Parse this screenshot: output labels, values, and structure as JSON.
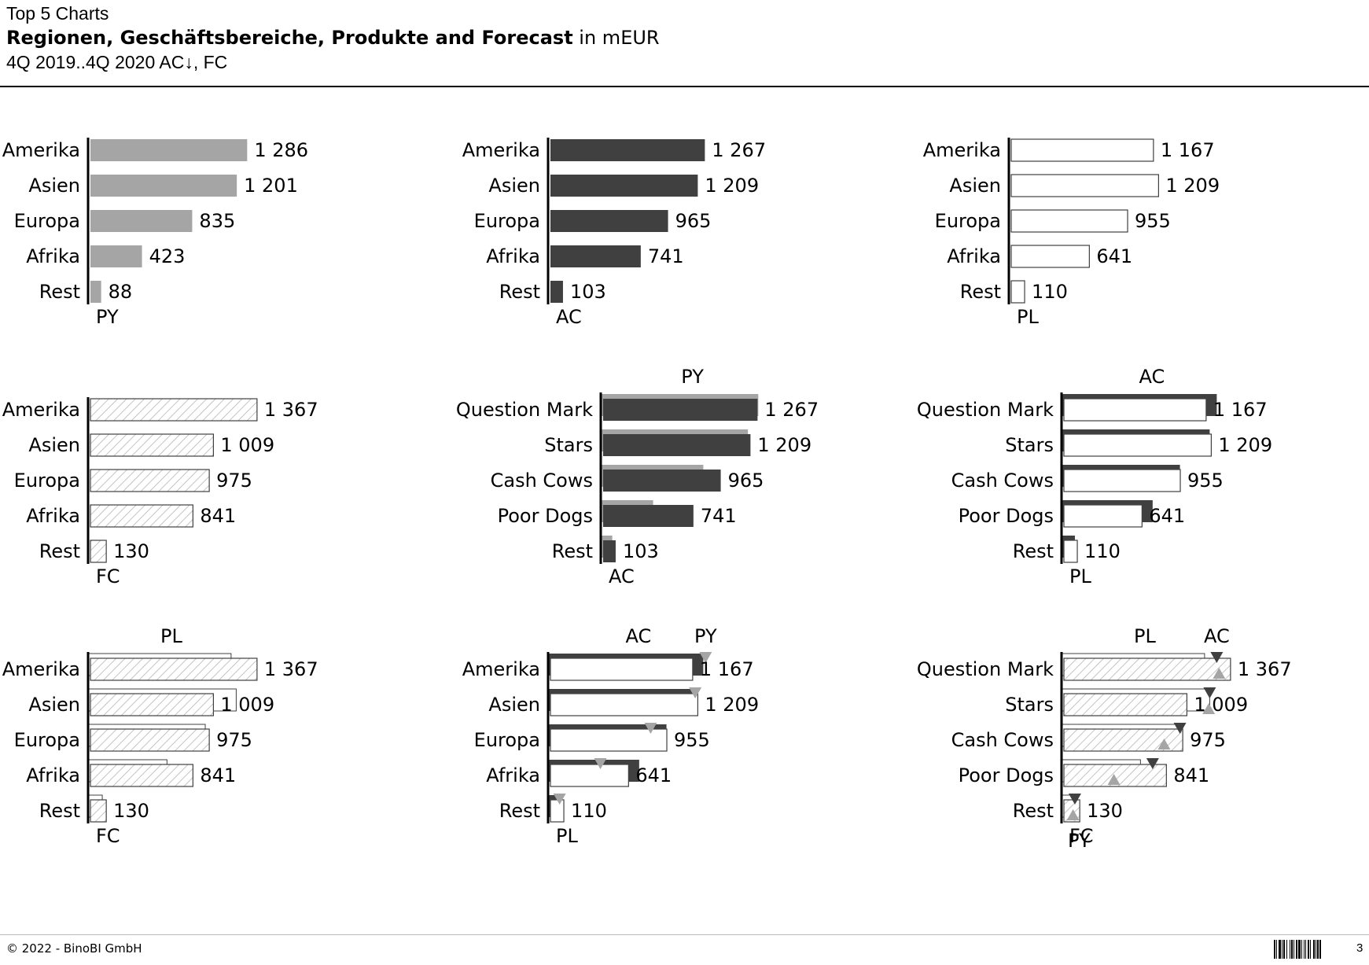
{
  "header": {
    "top": "Top 5 Charts",
    "title_bold": "Regionen, Geschäftsbereiche, Produkte and Forecast",
    "title_unit": " in mEUR",
    "subtitle": "4Q 2019..4Q 2020 AC↓, FC"
  },
  "footer": {
    "copyright": "© 2022 - BinoBI GmbH",
    "page": "3"
  },
  "colors": {
    "PY": "#a5a5a5",
    "AC": "#404040",
    "PL": "#ffffff",
    "FC": "hatch",
    "axis": "#000000"
  },
  "chart_data": [
    {
      "type": "bar",
      "id": "c1",
      "categories": [
        "Amerika",
        "Asien",
        "Europa",
        "Afrika",
        "Rest"
      ],
      "main": {
        "name": "PY",
        "values": [
          1286,
          1201,
          835,
          423,
          88
        ]
      },
      "labels": [
        "1 286",
        "1 201",
        "835",
        "423",
        "88"
      ],
      "axis_label": "PY"
    },
    {
      "type": "bar",
      "id": "c2",
      "categories": [
        "Amerika",
        "Asien",
        "Europa",
        "Afrika",
        "Rest"
      ],
      "main": {
        "name": "AC",
        "values": [
          1267,
          1209,
          965,
          741,
          103
        ]
      },
      "labels": [
        "1 267",
        "1 209",
        "965",
        "741",
        "103"
      ],
      "axis_label": "AC"
    },
    {
      "type": "bar",
      "id": "c3",
      "categories": [
        "Amerika",
        "Asien",
        "Europa",
        "Afrika",
        "Rest"
      ],
      "main": {
        "name": "PL",
        "values": [
          1167,
          1209,
          955,
          641,
          110
        ]
      },
      "labels": [
        "1 167",
        "1 209",
        "955",
        "641",
        "110"
      ],
      "axis_label": "PL"
    },
    {
      "type": "bar",
      "id": "c4",
      "categories": [
        "Amerika",
        "Asien",
        "Europa",
        "Afrika",
        "Rest"
      ],
      "main": {
        "name": "FC",
        "values": [
          1367,
          1009,
          975,
          841,
          130
        ]
      },
      "labels": [
        "1 367",
        "1 009",
        "975",
        "841",
        "130"
      ],
      "axis_label": "FC"
    },
    {
      "type": "bar",
      "id": "c5",
      "categories": [
        "Question Mark",
        "Stars",
        "Cash Cows",
        "Poor Dogs",
        "Rest"
      ],
      "main": {
        "name": "AC",
        "values": [
          1267,
          1209,
          965,
          741,
          103
        ]
      },
      "reference": {
        "name": "PY",
        "values": [
          1286,
          1201,
          835,
          423,
          88
        ]
      },
      "labels": [
        "1 267",
        "1 209",
        "965",
        "741",
        "103"
      ],
      "axis_label": "AC",
      "top_labels": [
        "PY"
      ]
    },
    {
      "type": "bar",
      "id": "c6",
      "categories": [
        "Question Mark",
        "Stars",
        "Cash Cows",
        "Poor Dogs",
        "Rest"
      ],
      "main": {
        "name": "PL",
        "values": [
          1167,
          1209,
          955,
          641,
          110
        ]
      },
      "reference": {
        "name": "AC",
        "values": [
          1267,
          1209,
          965,
          741,
          103
        ]
      },
      "labels": [
        "1 167",
        "1 209",
        "955",
        "641",
        "110"
      ],
      "axis_label": "PL",
      "top_labels": [
        "AC"
      ]
    },
    {
      "type": "bar",
      "id": "c7",
      "categories": [
        "Amerika",
        "Asien",
        "Europa",
        "Afrika",
        "Rest"
      ],
      "main": {
        "name": "FC",
        "values": [
          1367,
          1009,
          975,
          841,
          130
        ]
      },
      "reference": {
        "name": "PL",
        "values": [
          1167,
          1209,
          955,
          641,
          110
        ]
      },
      "labels": [
        "1 367",
        "1 009",
        "975",
        "841",
        "130"
      ],
      "axis_label": "FC",
      "top_labels": [
        "PL"
      ]
    },
    {
      "type": "bar",
      "id": "c8",
      "categories": [
        "Amerika",
        "Asien",
        "Europa",
        "Afrika",
        "Rest"
      ],
      "main": {
        "name": "PL",
        "values": [
          1167,
          1209,
          955,
          641,
          110
        ]
      },
      "reference": {
        "name": "AC",
        "values": [
          1267,
          1209,
          965,
          741,
          103
        ]
      },
      "markers": {
        "name": "PY",
        "values": [
          1286,
          1201,
          835,
          423,
          88
        ]
      },
      "labels": [
        "1 167",
        "1 209",
        "955",
        "641",
        "110"
      ],
      "axis_label": "PL",
      "top_labels": [
        "AC",
        "PY"
      ]
    },
    {
      "type": "bar",
      "id": "c9",
      "categories": [
        "Question Mark",
        "Stars",
        "Cash Cows",
        "Poor Dogs",
        "Rest"
      ],
      "main": {
        "name": "FC",
        "values": [
          1367,
          1009,
          975,
          841,
          130
        ]
      },
      "reference": {
        "name": "PL",
        "values": [
          1167,
          1209,
          955,
          641,
          110
        ]
      },
      "markers": {
        "name": "AC",
        "values": [
          1267,
          1209,
          965,
          741,
          103
        ]
      },
      "markers2": {
        "name": "PY",
        "values": [
          1286,
          1201,
          835,
          423,
          88
        ]
      },
      "labels": [
        "1 367",
        "1 009",
        "975",
        "841",
        "130"
      ],
      "axis_label": "FC",
      "bottom_label2": "PY",
      "top_labels": [
        "PL",
        "AC"
      ]
    }
  ]
}
